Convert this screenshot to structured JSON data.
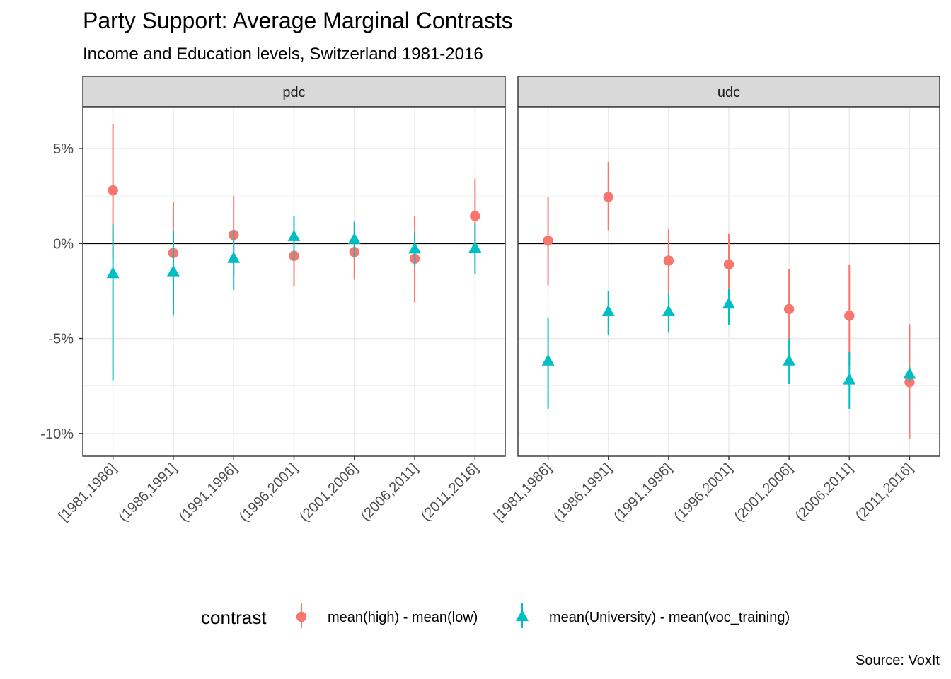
{
  "chart_data": {
    "type": "scatter",
    "title": "Party Support: Average Marginal Contrasts",
    "subtitle": "Income and Education levels, Switzerland 1981-2016",
    "caption": "Source: VoxIt",
    "xlabel": "",
    "ylabel": "",
    "ylim": [
      -11.2,
      7.2
    ],
    "y_ticks": [
      5,
      0,
      -5,
      -10
    ],
    "y_tick_labels": [
      "5%",
      "0%",
      "-5%",
      "-10%"
    ],
    "reference_line": 0,
    "grid": true,
    "legend_position": "bottom",
    "legend_title": "contrast",
    "categories": [
      "[1981,1986]",
      "(1986,1991]",
      "(1991,1996]",
      "(1996,2001]",
      "(2001,2006]",
      "(2006,2011]",
      "(2011,2016]"
    ],
    "panels": [
      {
        "name": "pdc",
        "series": [
          {
            "name": "mean(high) - mean(low)",
            "color": "#F8766D",
            "shape": "circle",
            "values": [
              2.8,
              -0.5,
              0.45,
              -0.65,
              -0.45,
              -0.8,
              1.45
            ],
            "lower": [
              -0.8,
              -3.3,
              -1.6,
              -2.25,
              -1.9,
              -3.1,
              -0.5
            ],
            "upper": [
              6.3,
              2.2,
              2.5,
              0.9,
              1.1,
              1.45,
              3.4
            ]
          },
          {
            "name": "mean(University) - mean(voc_training)",
            "color": "#00BFC4",
            "shape": "triangle",
            "values": [
              -1.6,
              -1.5,
              -0.8,
              0.35,
              0.2,
              -0.3,
              -0.25
            ],
            "lower": [
              -7.2,
              -3.8,
              -2.45,
              -0.85,
              -0.75,
              -1.2,
              -1.6
            ],
            "upper": [
              1.0,
              0.7,
              0.7,
              1.45,
              1.15,
              0.6,
              1.05
            ]
          }
        ]
      },
      {
        "name": "udc",
        "series": [
          {
            "name": "mean(high) - mean(low)",
            "color": "#F8766D",
            "shape": "circle",
            "values": [
              0.15,
              2.45,
              -0.9,
              -1.1,
              -3.45,
              -3.8,
              -7.3
            ],
            "lower": [
              -2.2,
              0.7,
              -2.6,
              -2.7,
              -5.5,
              -6.5,
              -10.3
            ],
            "upper": [
              2.45,
              4.3,
              0.75,
              0.5,
              -1.35,
              -1.1,
              -4.25
            ]
          },
          {
            "name": "mean(University) - mean(voc_training)",
            "color": "#00BFC4",
            "shape": "triangle",
            "values": [
              -6.2,
              -3.6,
              -3.6,
              -3.2,
              -6.2,
              -7.2,
              -6.9
            ],
            "lower": [
              -8.7,
              -4.8,
              -4.7,
              -4.3,
              -7.4,
              -8.7,
              -7.3
            ],
            "upper": [
              -3.9,
              -2.5,
              -2.6,
              -2.4,
              -5.0,
              -5.7,
              -6.5
            ]
          }
        ]
      }
    ]
  }
}
